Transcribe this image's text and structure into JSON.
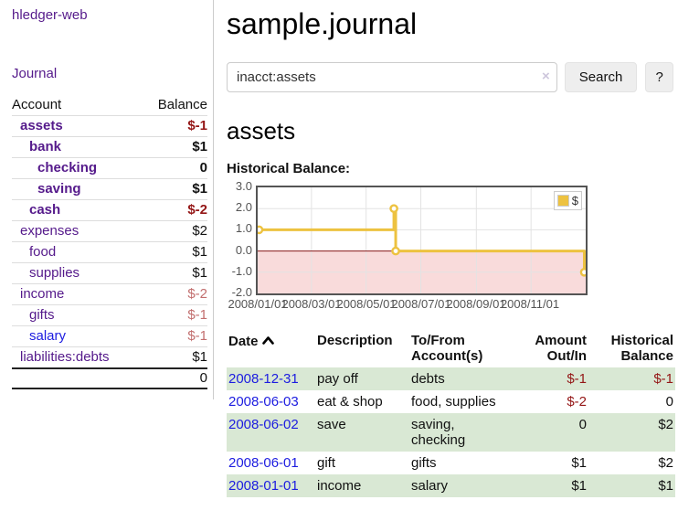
{
  "brand": "hledger-web",
  "sidebar": {
    "journal_link": "Journal",
    "accounts_table": {
      "col_account": "Account",
      "col_balance": "Balance",
      "rows": [
        {
          "name": "assets",
          "balance": "$-1"
        },
        {
          "name": "bank",
          "balance": "$1"
        },
        {
          "name": "checking",
          "balance": "0"
        },
        {
          "name": "saving",
          "balance": "$1"
        },
        {
          "name": "cash",
          "balance": "$-2"
        },
        {
          "name": "expenses",
          "balance": "$2"
        },
        {
          "name": "food",
          "balance": "$1"
        },
        {
          "name": "supplies",
          "balance": "$1"
        },
        {
          "name": "income",
          "balance": "$-2"
        },
        {
          "name": "gifts",
          "balance": "$-1"
        },
        {
          "name": "salary",
          "balance": "$-1"
        },
        {
          "name": "liabilities:debts",
          "balance": "$1"
        }
      ],
      "total": "0"
    }
  },
  "main": {
    "title": "sample.journal",
    "search": {
      "value": "inacct:assets",
      "clear": "×",
      "search_button": "Search",
      "help_button": "?"
    },
    "account_heading": "assets",
    "chart_title": "Historical Balance:",
    "register": {
      "headers": {
        "date": "Date",
        "description": "Description",
        "accounts": "To/From Account(s)",
        "amount": "Amount Out/In",
        "balance": "Historical Balance"
      },
      "rows": [
        {
          "date": "2008-12-31",
          "description": "pay off",
          "accounts": "debts",
          "amount": "$-1",
          "balance": "$-1"
        },
        {
          "date": "2008-06-03",
          "description": "eat & shop",
          "accounts": "food, supplies",
          "amount": "$-2",
          "balance": "0"
        },
        {
          "date": "2008-06-02",
          "description": "save",
          "accounts": "saving, checking",
          "amount": "0",
          "balance": "$2"
        },
        {
          "date": "2008-06-01",
          "description": "gift",
          "accounts": "gifts",
          "amount": "$1",
          "balance": "$2"
        },
        {
          "date": "2008-01-01",
          "description": "income",
          "accounts": "salary",
          "amount": "$1",
          "balance": "$1"
        }
      ]
    }
  },
  "chart_data": {
    "type": "line",
    "subtype": "step-left",
    "title": "Historical Balance",
    "legend": [
      "$"
    ],
    "legend_position": "top-right",
    "x": [
      "2008-01-01",
      "2008-06-01",
      "2008-06-03",
      "2008-12-31"
    ],
    "values": [
      1,
      2,
      0,
      -1
    ],
    "xlim": [
      "2008-01-01",
      "2009-01-01"
    ],
    "ylim": [
      -2,
      3
    ],
    "x_ticks": [
      "2008/01/01",
      "2008/03/01",
      "2008/05/01",
      "2008/07/01",
      "2008/09/01",
      "2008/11/01"
    ],
    "y_ticks": [
      "3.0",
      "2.0",
      "1.0",
      "0.0",
      "-1.0",
      "-2.0"
    ],
    "grid": true,
    "line_color": "#edc240",
    "marker_fill": "#ffffff",
    "zero_line_color": "#8b1a1a",
    "negative_region_color": "#f9dbdb"
  },
  "colors": {
    "link_purple": "#551A8B",
    "link_blue": "#1c1ce0",
    "negative_red": "#941616",
    "negative_dim": "#c26e6e",
    "row_green": "#d9e8d4",
    "series_gold": "#edc240"
  }
}
